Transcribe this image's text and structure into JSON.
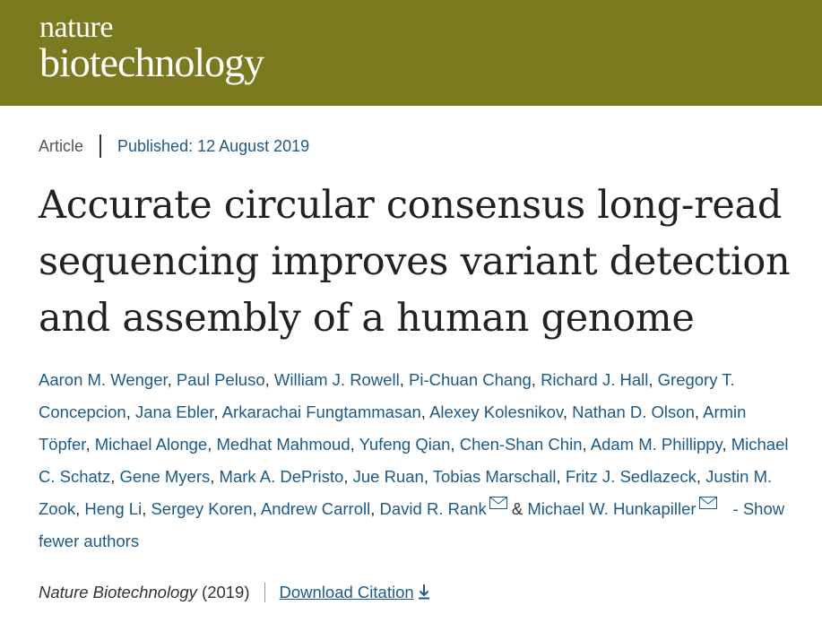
{
  "masthead": {
    "logo_line1": "nature",
    "logo_line2": "biotechnology",
    "background_color": "#7b7a1f"
  },
  "article_meta": {
    "type": "Article",
    "published": "Published: 12 August 2019"
  },
  "title": "Accurate circular consensus long-read sequencing improves variant detection and assembly of a human genome",
  "authors": [
    "Aaron M. Wenger",
    "Paul Peluso",
    "William J. Rowell",
    "Pi-Chuan Chang",
    "Richard J. Hall",
    "Gregory T. Concepcion",
    "Jana Ebler",
    "Arkarachai Fungtammasan",
    "Alexey Kolesnikov",
    "Nathan D. Olson",
    "Armin Töpfer",
    "Michael Alonge",
    "Medhat Mahmoud",
    "Yufeng Qian",
    "Chen-Shan Chin",
    "Adam M. Phillippy",
    "Michael C. Schatz",
    "Gene Myers",
    "Mark A. DePristo",
    "Jue Ruan",
    "Tobias Marschall",
    "Fritz J. Sedlazeck",
    "Justin M. Zook",
    "Heng Li",
    "Sergey Koren",
    "Andrew Carroll"
  ],
  "corresponding_authors": [
    "David R. Rank",
    "Michael W. Hunkapiller"
  ],
  "author_joiner": "&",
  "show_fewer_label": "- Show fewer authors",
  "citation": {
    "journal": "Nature Biotechnology",
    "year": "(2019)",
    "download_label": "Download Citation"
  },
  "icons": {
    "mail": "mail-icon",
    "download": "download-icon"
  },
  "colors": {
    "link": "#1b5a8a",
    "text": "#222222"
  }
}
